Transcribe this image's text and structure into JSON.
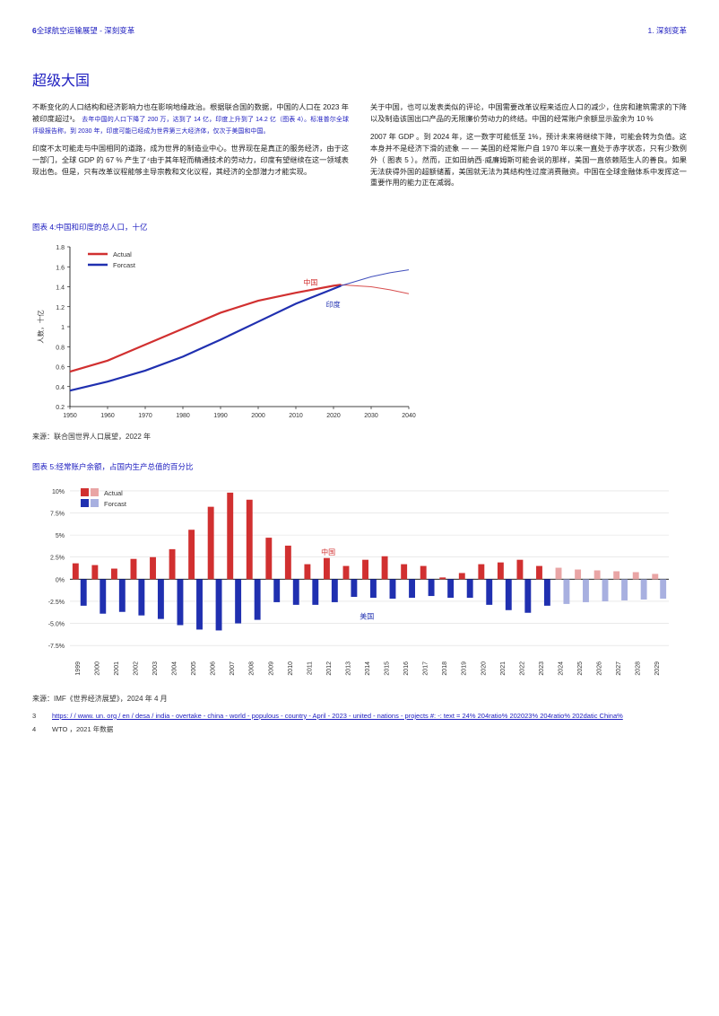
{
  "header": {
    "page_num": "6",
    "left_text": "全球航空运输展望 - 深刻变革",
    "right_text": "1. 深刻变革"
  },
  "section_title": "超级大国",
  "col_left": {
    "p1": "不断变化的人口结构和经济影响力也在影响地缘政治。根据联合国的数据，中国的人口在 2023 年被印度超过³。",
    "p1_small": "去年中国的人口下降了 200 万，达到了 14 亿，印度上升到了 14.2 亿（图表 4）。标准普尔全球评级报告称，到 2030 年，印度可能已经成为世界第三大经济体，仅次于美国和中国。",
    "p2": "印度不太可能走与中国相同的道路，成为世界的制造业中心。世界现在是真正的服务经济，由于这一部门，全球 GDP 的 67 % 产生了⁴由于其年轻而精通技术的劳动力，印度有望继续在这一领域表现出色。但是，只有改革议程能够主导宗教和文化议程，其经济的全部潜力才能实现。"
  },
  "col_right": {
    "p1": "关于中国，也可以发表类似的评论，中国需要改革议程来适应人口的减少，住房和建筑需求的下降以及制造该国出口产品的无限廉价劳动力的终结。中国的经常账户余额显示盈余为 10 %",
    "p2": "2007 年 GDP 。到 2024 年，这一数字可能低至 1%，预计未来将继续下降，可能会转为负值。这本身并不是经济下滑的迹象 — — 美国的经常账户自 1970 年以来一直处于赤字状态，只有少数例外（ 图表 5 ）。然而，正如田纳西·威廉姆斯可能会说的那样，美国一直依赖陌生人的善良。如果无法获得外国的超额储蓄，美国就无法为其结构性过度消费融资。中国在全球金融体系中发挥这一重要作用的能力正在减弱。"
  },
  "chart4": {
    "title_label": "图表 4:",
    "title_desc": "中国和印度的总人口，十亿",
    "legend_actual": "Actual",
    "legend_forecast": "Forcast",
    "annotation_china": "中国",
    "annotation_india": "印度",
    "y_axis_label": "人数，十亿",
    "y_ticks": [
      "0.2",
      "0.4",
      "0.6",
      "0.8",
      "1",
      "1.2",
      "1.4",
      "1.6",
      "1.8"
    ],
    "x_ticks": [
      "1950",
      "1960",
      "1970",
      "1980",
      "1990",
      "2000",
      "2010",
      "2020",
      "2030",
      "2040"
    ],
    "y_min": 0.2,
    "y_max": 1.8,
    "x_min": 1950,
    "x_max": 2040,
    "china_actual_color": "#d13030",
    "china_forecast_color": "#d13030",
    "india_actual_color": "#2030b0",
    "india_forecast_color": "#2030b0",
    "china_actual": [
      [
        1950,
        0.55
      ],
      [
        1960,
        0.66
      ],
      [
        1970,
        0.82
      ],
      [
        1980,
        0.98
      ],
      [
        1990,
        1.14
      ],
      [
        2000,
        1.26
      ],
      [
        2010,
        1.34
      ],
      [
        2020,
        1.41
      ],
      [
        2022,
        1.42
      ]
    ],
    "china_forecast": [
      [
        2022,
        1.42
      ],
      [
        2030,
        1.4
      ],
      [
        2035,
        1.37
      ],
      [
        2040,
        1.33
      ]
    ],
    "india_actual": [
      [
        1950,
        0.36
      ],
      [
        1960,
        0.45
      ],
      [
        1970,
        0.56
      ],
      [
        1980,
        0.7
      ],
      [
        1990,
        0.87
      ],
      [
        2000,
        1.05
      ],
      [
        2010,
        1.23
      ],
      [
        2020,
        1.38
      ],
      [
        2022,
        1.41
      ]
    ],
    "india_forecast": [
      [
        2022,
        1.41
      ],
      [
        2030,
        1.5
      ],
      [
        2035,
        1.54
      ],
      [
        2040,
        1.57
      ]
    ],
    "source": "来源：联合国世界人口展望，2022 年"
  },
  "chart5": {
    "title_label": "图表 5:",
    "title_desc": "经常账户余额，占国内生产总值的百分比",
    "legend_actual": "Actual",
    "legend_forecast": "Forcast",
    "annotation_china": "中国",
    "annotation_usa": "美国",
    "y_ticks": [
      "-7.5%",
      "-5.0%",
      "-2.5%",
      "0%",
      "2.5%",
      "5%",
      "7.5%",
      "10%"
    ],
    "y_min": -8.5,
    "y_max": 10.5,
    "years": [
      "1999",
      "2000",
      "2001",
      "2002",
      "2003",
      "2004",
      "2005",
      "2006",
      "2007",
      "2008",
      "2009",
      "2010",
      "2011",
      "2012",
      "2013",
      "2014",
      "2015",
      "2016",
      "2017",
      "2018",
      "2019",
      "2020",
      "2021",
      "2022",
      "2023",
      "2024",
      "2025",
      "2026",
      "2027",
      "2028",
      "2029"
    ],
    "china_values": [
      1.8,
      1.6,
      1.2,
      2.3,
      2.5,
      3.4,
      5.6,
      8.2,
      9.8,
      9.0,
      4.7,
      3.8,
      1.7,
      2.4,
      1.5,
      2.2,
      2.6,
      1.7,
      1.5,
      0.2,
      0.7,
      1.7,
      1.9,
      2.2,
      1.5,
      1.3,
      1.1,
      1.0,
      0.9,
      0.8,
      0.6
    ],
    "usa_values": [
      -3.0,
      -3.9,
      -3.7,
      -4.1,
      -4.5,
      -5.2,
      -5.7,
      -5.8,
      -5.0,
      -4.6,
      -2.6,
      -2.9,
      -2.9,
      -2.6,
      -2.0,
      -2.1,
      -2.2,
      -2.1,
      -1.9,
      -2.1,
      -2.1,
      -2.9,
      -3.5,
      -3.8,
      -3.0,
      -2.8,
      -2.6,
      -2.5,
      -2.4,
      -2.3,
      -2.2
    ],
    "actual_count": 25,
    "china_actual_color": "#d13030",
    "china_forecast_color": "#e9a5a5",
    "usa_actual_color": "#2030b0",
    "usa_forecast_color": "#a8b0e0",
    "source": "来源：IMF《世界经济展望》，2024 年 4 月"
  },
  "footnotes": {
    "fn3_num": "3",
    "fn3_text": "https: / / www. un. org / en / desa / india - overtake - china - world - populous - country - April - 2023 - united - nations - projects #: -: text = 24% 204ratio% 202023% 204ratio% 202datic China%",
    "fn4_num": "4",
    "fn4_text": "WTO ，2021 年数据"
  }
}
